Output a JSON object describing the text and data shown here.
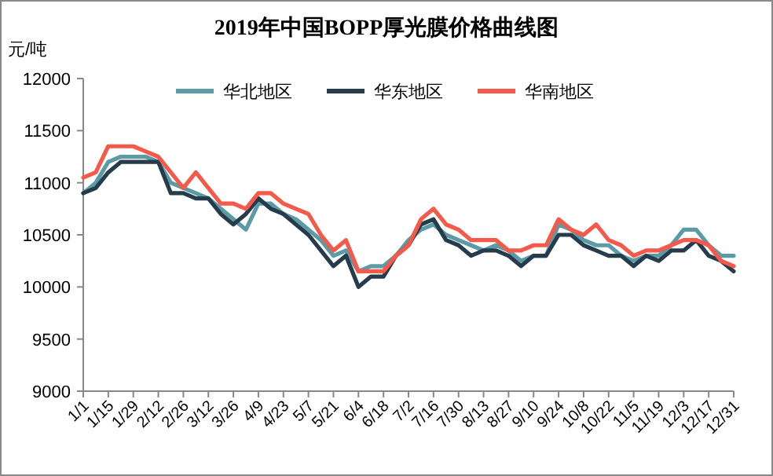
{
  "chart_data": {
    "type": "line",
    "title": "2019年中国BOPP厚光膜价格曲线图",
    "ylabel": "元/吨",
    "x": [
      "2019-01-01",
      "2019-01-08",
      "2019-01-15",
      "2019-01-22",
      "2019-01-29",
      "2019-02-05",
      "2019-02-12",
      "2019-02-19",
      "2019-02-26",
      "2019-03-05",
      "2019-03-12",
      "2019-03-19",
      "2019-03-26",
      "2019-04-02",
      "2019-04-09",
      "2019-04-16",
      "2019-04-23",
      "2019-04-30",
      "2019-05-07",
      "2019-05-14",
      "2019-05-21",
      "2019-05-28",
      "2019-06-04",
      "2019-06-11",
      "2019-06-18",
      "2019-06-25",
      "2019-07-02",
      "2019-07-09",
      "2019-07-16",
      "2019-07-23",
      "2019-07-30",
      "2019-08-06",
      "2019-08-13",
      "2019-08-20",
      "2019-08-27",
      "2019-09-03",
      "2019-09-10",
      "2019-09-17",
      "2019-09-24",
      "2019-10-01",
      "2019-10-08",
      "2019-10-15",
      "2019-10-22",
      "2019-10-29",
      "2019-11-05",
      "2019-11-12",
      "2019-11-19",
      "2019-11-26",
      "2019-12-03",
      "2019-12-10",
      "2019-12-17",
      "2019-12-24",
      "2019-12-31"
    ],
    "series": [
      {
        "name": "华北地区",
        "color": "#5b9ba6",
        "values": [
          10900,
          11000,
          11200,
          11250,
          11250,
          11250,
          11200,
          11000,
          10950,
          10900,
          10850,
          10750,
          10650,
          10550,
          10800,
          10800,
          10700,
          10650,
          10550,
          10450,
          10300,
          10350,
          10150,
          10200,
          10200,
          10300,
          10450,
          10550,
          10600,
          10500,
          10450,
          10400,
          10350,
          10400,
          10350,
          10250,
          10300,
          10300,
          10600,
          10550,
          10450,
          10400,
          10400,
          10300,
          10250,
          10300,
          10300,
          10400,
          10550,
          10550,
          10400,
          10300,
          10300
        ]
      },
      {
        "name": "华东地区",
        "color": "#263c4c",
        "values": [
          10900,
          10950,
          11100,
          11200,
          11200,
          11200,
          11200,
          10900,
          10900,
          10850,
          10850,
          10700,
          10600,
          10700,
          10850,
          10750,
          10700,
          10600,
          10500,
          10350,
          10200,
          10300,
          10000,
          10100,
          10100,
          10300,
          10400,
          10600,
          10650,
          10450,
          10400,
          10300,
          10350,
          10350,
          10300,
          10200,
          10300,
          10300,
          10500,
          10500,
          10400,
          10350,
          10300,
          10300,
          10200,
          10300,
          10250,
          10350,
          10350,
          10450,
          10300,
          10250,
          10150
        ]
      },
      {
        "name": "华南地区",
        "color": "#f4594a",
        "values": [
          11050,
          11100,
          11350,
          11350,
          11350,
          11300,
          11250,
          11100,
          10950,
          11100,
          10950,
          10800,
          10800,
          10750,
          10900,
          10900,
          10800,
          10750,
          10700,
          10500,
          10350,
          10450,
          10150,
          10150,
          10150,
          10300,
          10400,
          10650,
          10750,
          10600,
          10550,
          10450,
          10450,
          10450,
          10350,
          10350,
          10400,
          10400,
          10650,
          10550,
          10500,
          10600,
          10450,
          10400,
          10300,
          10350,
          10350,
          10400,
          10450,
          10450,
          10400,
          10250,
          10200
        ]
      }
    ],
    "xlim": [
      "2019-01-01",
      "2019-12-31"
    ],
    "xticks": [
      {
        "value": "2019-01-01",
        "label": "1/1"
      },
      {
        "value": "2019-01-15",
        "label": "1/15"
      },
      {
        "value": "2019-01-29",
        "label": "1/29"
      },
      {
        "value": "2019-02-12",
        "label": "2/12"
      },
      {
        "value": "2019-02-26",
        "label": "2/26"
      },
      {
        "value": "2019-03-12",
        "label": "3/12"
      },
      {
        "value": "2019-03-26",
        "label": "3/26"
      },
      {
        "value": "2019-04-09",
        "label": "4/9"
      },
      {
        "value": "2019-04-23",
        "label": "4/23"
      },
      {
        "value": "2019-05-07",
        "label": "5/7"
      },
      {
        "value": "2019-05-21",
        "label": "5/21"
      },
      {
        "value": "2019-06-04",
        "label": "6/4"
      },
      {
        "value": "2019-06-18",
        "label": "6/18"
      },
      {
        "value": "2019-07-02",
        "label": "7/2"
      },
      {
        "value": "2019-07-16",
        "label": "7/16"
      },
      {
        "value": "2019-07-30",
        "label": "7/30"
      },
      {
        "value": "2019-08-13",
        "label": "8/13"
      },
      {
        "value": "2019-08-27",
        "label": "8/27"
      },
      {
        "value": "2019-09-10",
        "label": "9/10"
      },
      {
        "value": "2019-09-24",
        "label": "9/24"
      },
      {
        "value": "2019-10-08",
        "label": "10/8"
      },
      {
        "value": "2019-10-22",
        "label": "10/22"
      },
      {
        "value": "2019-11-05",
        "label": "11/5"
      },
      {
        "value": "2019-11-19",
        "label": "11/19"
      },
      {
        "value": "2019-12-03",
        "label": "12/3"
      },
      {
        "value": "2019-12-17",
        "label": "12/17"
      },
      {
        "value": "2019-12-31",
        "label": "12/31"
      }
    ],
    "ylim": [
      9000,
      12000
    ],
    "yticks": [
      9000,
      9500,
      10000,
      10500,
      11000,
      11500,
      12000
    ],
    "grid": false,
    "legend": "top",
    "marker": "none",
    "line_style": "solid"
  }
}
